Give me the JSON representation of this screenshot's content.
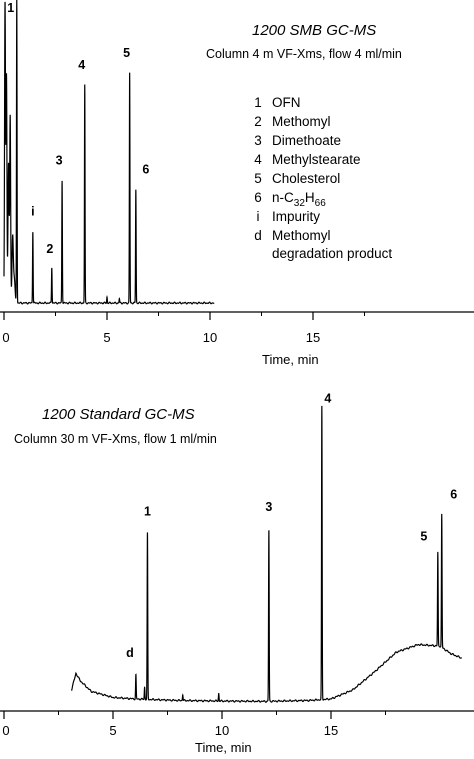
{
  "chart_data": [
    {
      "type": "line",
      "title": "1200 SMB GC-MS",
      "subtitle": "Column 4 m VF-Xms, flow 4 ml/min",
      "xlabel": "Time, min",
      "ylabel": "",
      "xlim": [
        0,
        20
      ],
      "ticks": [
        {
          "v": 0,
          "label": "0"
        },
        {
          "v": 5,
          "label": "5"
        },
        {
          "v": 10,
          "label": "10"
        },
        {
          "v": 15,
          "label": "15"
        }
      ],
      "legend": [
        {
          "key": "1",
          "base": "OFN"
        },
        {
          "key": "2",
          "base": "Methomyl"
        },
        {
          "key": "3",
          "base": "Dimethoate"
        },
        {
          "key": "4",
          "base": "Methylstearate"
        },
        {
          "key": "5",
          "base": "Cholesterol"
        },
        {
          "key": "6",
          "base": "n-C",
          "sub1": "32",
          "mid": "H",
          "sub2": "66"
        },
        {
          "key": "i",
          "base": "Impurity"
        },
        {
          "key": "d",
          "base": "Methomyl"
        },
        {
          "key": "",
          "base": "degradation product"
        }
      ],
      "baseline": 0.02,
      "trace_end": 10.2,
      "peaks": [
        {
          "t": 0.05,
          "h": 1.0,
          "w": 0.05
        },
        {
          "t": 0.12,
          "h": 0.76,
          "w": 0.05
        },
        {
          "t": 0.22,
          "h": 0.47,
          "w": 0.06
        },
        {
          "t": 0.3,
          "h": 0.62,
          "w": 0.05
        },
        {
          "t": 0.42,
          "h": 0.22,
          "w": 0.07
        },
        {
          "t": 0.5,
          "h": 0.08,
          "w": 0.08
        },
        {
          "t": 0.62,
          "h": 1.02,
          "w": 0.03,
          "label": "1"
        },
        {
          "t": 1.4,
          "h": 0.24,
          "w": 0.03,
          "label": "i"
        },
        {
          "t": 2.32,
          "h": 0.12,
          "w": 0.03,
          "label": "2"
        },
        {
          "t": 2.82,
          "h": 0.41,
          "w": 0.03,
          "label": "3"
        },
        {
          "t": 3.92,
          "h": 0.73,
          "w": 0.03,
          "label": "4"
        },
        {
          "t": 6.1,
          "h": 0.77,
          "w": 0.03,
          "label": "5"
        },
        {
          "t": 6.4,
          "h": 0.38,
          "w": 0.03,
          "label": "6"
        },
        {
          "t": 5.0,
          "h": 0.02,
          "w": 0.03
        },
        {
          "t": 5.6,
          "h": 0.015,
          "w": 0.03
        }
      ]
    },
    {
      "type": "line",
      "title": "1200 Standard GC-MS",
      "subtitle": "Column 30 m VF-Xms, flow 1 ml/min",
      "xlabel": "Time, min",
      "ylabel": "",
      "xlim": [
        0,
        21
      ],
      "ticks": [
        {
          "v": 0,
          "label": "0"
        },
        {
          "v": 5,
          "label": "5"
        },
        {
          "v": 10,
          "label": "10"
        },
        {
          "v": 15,
          "label": "15"
        }
      ],
      "trace_start": 3.1,
      "trace_end": 21,
      "baseline_profile": [
        [
          3.1,
          0.06
        ],
        [
          3.3,
          0.115
        ],
        [
          3.5,
          0.09
        ],
        [
          4.0,
          0.055
        ],
        [
          5.0,
          0.035
        ],
        [
          6.0,
          0.03
        ],
        [
          8.0,
          0.025
        ],
        [
          10.0,
          0.023
        ],
        [
          12.0,
          0.022
        ],
        [
          14.0,
          0.025
        ],
        [
          15.0,
          0.03
        ],
        [
          16.0,
          0.06
        ],
        [
          17.0,
          0.12
        ],
        [
          18.0,
          0.185
        ],
        [
          19.0,
          0.21
        ],
        [
          20.0,
          0.205
        ],
        [
          20.5,
          0.18
        ],
        [
          21.0,
          0.165
        ]
      ],
      "peaks": [
        {
          "t": 6.05,
          "h": 0.08,
          "w": 0.03,
          "label": "d"
        },
        {
          "t": 6.45,
          "h": 0.04,
          "w": 0.03
        },
        {
          "t": 6.58,
          "h": 0.55,
          "w": 0.03,
          "label": "1"
        },
        {
          "t": 8.2,
          "h": 0.02,
          "w": 0.03
        },
        {
          "t": 9.85,
          "h": 0.025,
          "w": 0.03
        },
        {
          "t": 12.15,
          "h": 0.57,
          "w": 0.03,
          "label": "3"
        },
        {
          "t": 14.58,
          "h": 0.97,
          "w": 0.03,
          "label": "4"
        },
        {
          "t": 19.9,
          "h": 0.31,
          "w": 0.03,
          "label": "5"
        },
        {
          "t": 20.08,
          "h": 0.44,
          "w": 0.03,
          "label": "6"
        }
      ]
    }
  ]
}
